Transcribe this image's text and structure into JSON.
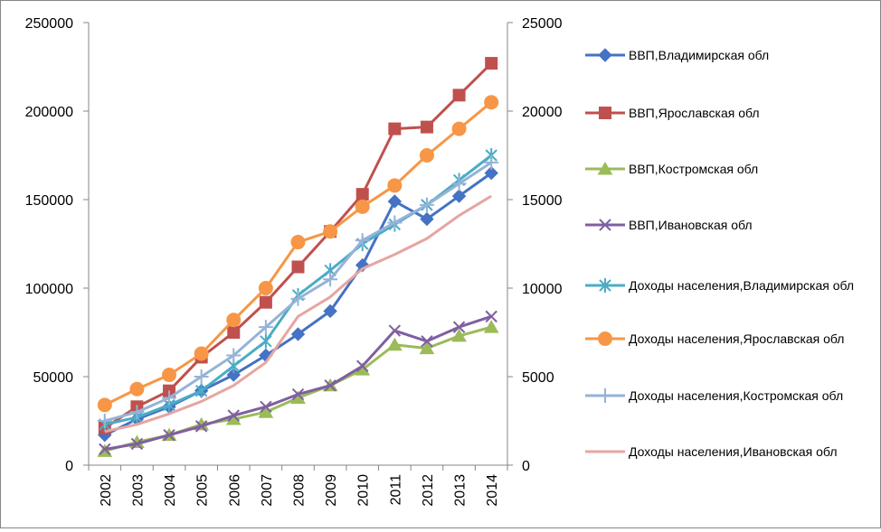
{
  "chart_data": {
    "type": "line",
    "categories": [
      "2002",
      "2003",
      "2004",
      "2005",
      "2006",
      "2007",
      "2008",
      "2009",
      "2010",
      "2011",
      "2012",
      "2013",
      "2014"
    ],
    "y_left": {
      "min": 0,
      "max": 250000,
      "step": 50000,
      "ticks": [
        "0",
        "50000",
        "100000",
        "150000",
        "200000",
        "250000"
      ]
    },
    "y_right": {
      "min": 0,
      "max": 25000,
      "step": 5000,
      "ticks": [
        "0",
        "5000",
        "10000",
        "15000",
        "20000",
        "25000"
      ]
    },
    "grid": false,
    "legend_position": "right",
    "series": [
      {
        "name": "ВВП,Владимирская обл",
        "axis": "left",
        "color": "#4472C4",
        "marker": "diamond",
        "values": [
          17000,
          26000,
          33000,
          42000,
          51000,
          62000,
          74000,
          87000,
          113000,
          149000,
          139000,
          152000,
          165000
        ]
      },
      {
        "name": "ВВП,Ярославская обл",
        "axis": "left",
        "color": "#C0504D",
        "marker": "square",
        "values": [
          21000,
          33000,
          42000,
          61000,
          75000,
          92000,
          112000,
          132000,
          153000,
          190000,
          191000,
          209000,
          227000
        ]
      },
      {
        "name": "ВВП,Костромская обл",
        "axis": "left",
        "color": "#9BBB59",
        "marker": "triangle",
        "values": [
          8000,
          13000,
          17000,
          23000,
          26000,
          30000,
          38000,
          45000,
          54000,
          68000,
          66000,
          73000,
          78000
        ]
      },
      {
        "name": "ВВП,Ивановская обл",
        "axis": "left",
        "color": "#7F5FA0",
        "marker": "x",
        "values": [
          9000,
          12000,
          17000,
          22000,
          28000,
          33000,
          40000,
          45000,
          56000,
          76000,
          70000,
          78000,
          84000
        ]
      },
      {
        "name": "Доходы населения,Владимирская обл",
        "axis": "right",
        "color": "#4BACC6",
        "marker": "star",
        "values": [
          2300,
          2700,
          3400,
          4200,
          5600,
          7000,
          9600,
          11000,
          12500,
          13600,
          14700,
          16100,
          17500
        ]
      },
      {
        "name": "Доходы населения,Ярославская обл",
        "axis": "right",
        "color": "#F79646",
        "marker": "circle",
        "values": [
          3400,
          4300,
          5100,
          6300,
          8200,
          10000,
          12600,
          13200,
          14600,
          15800,
          17500,
          19000,
          20500
        ]
      },
      {
        "name": "Доходы населения,Костромская обл",
        "axis": "right",
        "color": "#95B3D7",
        "marker": "plus",
        "values": [
          2500,
          3000,
          3800,
          5000,
          6200,
          7800,
          9400,
          10500,
          12700,
          13700,
          14700,
          15900,
          17100
        ]
      },
      {
        "name": "Доходы населения,Ивановская обл",
        "axis": "right",
        "color": "#E6A5A2",
        "marker": "none",
        "values": [
          1900,
          2300,
          2900,
          3600,
          4500,
          5800,
          8400,
          9500,
          11100,
          11900,
          12800,
          14100,
          15200
        ]
      }
    ]
  }
}
